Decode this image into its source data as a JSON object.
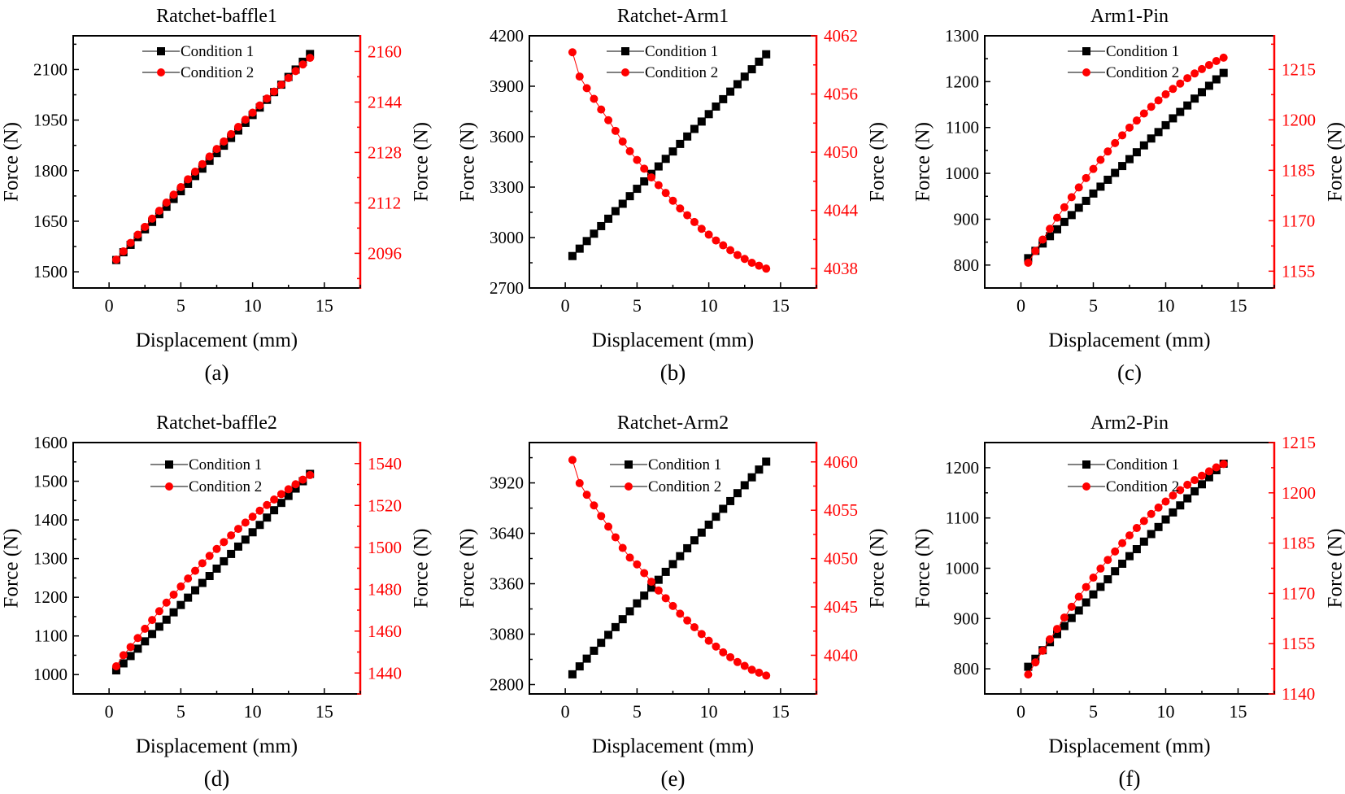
{
  "colors": {
    "series1": "#000000",
    "series2": "#ff0000",
    "axis": "#000000",
    "right_axis": "#ff0000"
  },
  "chart_data": [
    {
      "type": "line",
      "title": "Ratchet-baffle1",
      "panel_label": "(a)",
      "xlabel": "Displacement (mm)",
      "ylabel_left": "Force (N)",
      "ylabel_right": "Force (N)",
      "xlim": [
        -2.5,
        17.5
      ],
      "xticks": [
        0,
        5,
        10,
        15
      ],
      "y_left": {
        "lim": [
          1452,
          2200
        ],
        "ticks": [
          1500,
          1650,
          1800,
          1950,
          2100
        ]
      },
      "y_right": {
        "lim": [
          2085,
          2165
        ],
        "ticks": [
          2096,
          2112,
          2128,
          2144,
          2160
        ]
      },
      "legend": "top-center",
      "grid": false,
      "x": [
        0.5,
        1,
        1.5,
        2,
        2.5,
        3,
        3.5,
        4,
        4.5,
        5,
        5.5,
        6,
        6.5,
        7,
        7.5,
        8,
        8.5,
        9,
        9.5,
        10,
        10.5,
        11,
        11.5,
        12,
        12.5,
        13,
        13.5,
        14
      ],
      "series": [
        {
          "name": "Condition 1",
          "axis": "left",
          "marker": "square",
          "color": "#000000",
          "values": [
            1535,
            1558,
            1580,
            1603,
            1626,
            1648,
            1671,
            1693,
            1716,
            1739,
            1761,
            1784,
            1806,
            1829,
            1852,
            1874,
            1897,
            1919,
            1942,
            1965,
            1987,
            2010,
            2033,
            2055,
            2078,
            2100,
            2123,
            2146
          ]
        },
        {
          "name": "Condition 2",
          "axis": "right",
          "marker": "circle",
          "color": "#ff0000",
          "values": [
            2094,
            2096.6,
            2099.3,
            2101.9,
            2104.4,
            2107,
            2109.5,
            2112.1,
            2114.6,
            2117,
            2119.5,
            2121.9,
            2124.3,
            2126.7,
            2129.1,
            2131.5,
            2133.8,
            2136.1,
            2138.4,
            2140.6,
            2142.9,
            2145.1,
            2147.3,
            2149.5,
            2151.6,
            2153.8,
            2155.9,
            2158
          ]
        }
      ]
    },
    {
      "type": "line",
      "title": "Ratchet-Arm1",
      "panel_label": "(b)",
      "xlabel": "Displacement (mm)",
      "ylabel_left": "Force (N)",
      "ylabel_right": "Force (N)",
      "xlim": [
        -2.5,
        17.5
      ],
      "xticks": [
        0,
        5,
        10,
        15
      ],
      "y_left": {
        "lim": [
          2700,
          4200
        ],
        "ticks": [
          2700,
          3000,
          3300,
          3600,
          3900,
          4200
        ]
      },
      "y_right": {
        "lim": [
          4036,
          4062
        ],
        "ticks": [
          4038,
          4044,
          4050,
          4056,
          4062
        ]
      },
      "legend": "top-center",
      "grid": false,
      "x": [
        0.5,
        1,
        1.5,
        2,
        2.5,
        3,
        3.5,
        4,
        4.5,
        5,
        5.5,
        6,
        6.5,
        7,
        7.5,
        8,
        8.5,
        9,
        9.5,
        10,
        10.5,
        11,
        11.5,
        12,
        12.5,
        13,
        13.5,
        14
      ],
      "series": [
        {
          "name": "Condition 1",
          "axis": "left",
          "marker": "square",
          "color": "#000000",
          "values": [
            2890,
            2934,
            2979,
            3023,
            3068,
            3112,
            3157,
            3201,
            3246,
            3290,
            3334,
            3379,
            3423,
            3468,
            3512,
            3557,
            3601,
            3646,
            3690,
            3734,
            3779,
            3823,
            3868,
            3912,
            3957,
            4001,
            4046,
            4090
          ]
        },
        {
          "name": "Condition 2",
          "axis": "right",
          "marker": "circle",
          "color": "#ff0000",
          "values": [
            4060.3,
            4057.8,
            4056.6,
            4055.5,
            4054.4,
            4053.3,
            4052.2,
            4051.1,
            4050.1,
            4049.2,
            4048.3,
            4047.4,
            4046.6,
            4045.8,
            4045,
            4044.2,
            4043.5,
            4042.8,
            4042.1,
            4041.5,
            4040.9,
            4040.4,
            4039.9,
            4039.4,
            4039,
            4038.6,
            4038.3,
            4038
          ]
        }
      ]
    },
    {
      "type": "line",
      "title": "Arm1-Pin",
      "panel_label": "(c)",
      "xlabel": "Displacement (mm)",
      "ylabel_left": "Force (N)",
      "ylabel_right": "Force (N)",
      "xlim": [
        -2.5,
        17.5
      ],
      "xticks": [
        0,
        5,
        10,
        15
      ],
      "y_left": {
        "lim": [
          750,
          1300
        ],
        "ticks": [
          800,
          900,
          1000,
          1100,
          1200,
          1300
        ]
      },
      "y_right": {
        "lim": [
          1150,
          1225
        ],
        "ticks": [
          1155,
          1170,
          1185,
          1200,
          1215
        ]
      },
      "legend": "top-center",
      "grid": false,
      "x": [
        0.5,
        1,
        1.5,
        2,
        2.5,
        3,
        3.5,
        4,
        4.5,
        5,
        5.5,
        6,
        6.5,
        7,
        7.5,
        8,
        8.5,
        9,
        9.5,
        10,
        10.5,
        11,
        11.5,
        12,
        12.5,
        13,
        13.5,
        14
      ],
      "series": [
        {
          "name": "Condition 1",
          "axis": "left",
          "marker": "square",
          "color": "#000000",
          "values": [
            815,
            831,
            847,
            863,
            878,
            894,
            909,
            925,
            940,
            956,
            971,
            986,
            1001,
            1016,
            1031,
            1046,
            1061,
            1076,
            1090,
            1105,
            1120,
            1134,
            1148,
            1163,
            1177,
            1191,
            1205,
            1219
          ]
        },
        {
          "name": "Condition 2",
          "axis": "right",
          "marker": "circle",
          "color": "#ff0000",
          "values": [
            1157.5,
            1161,
            1164.4,
            1167.6,
            1170.9,
            1174,
            1177,
            1179.9,
            1182.7,
            1185.4,
            1188.1,
            1190.6,
            1193.1,
            1195.4,
            1197.7,
            1199.8,
            1201.9,
            1203.9,
            1205.8,
            1207.6,
            1209.2,
            1210.8,
            1212.4,
            1213.8,
            1215.1,
            1216.3,
            1217.5,
            1218.5
          ]
        }
      ]
    },
    {
      "type": "line",
      "title": "Ratchet-baffle2",
      "panel_label": "(d)",
      "xlabel": "Displacement (mm)",
      "ylabel_left": "Force (N)",
      "ylabel_right": "Force (N)",
      "xlim": [
        -2.5,
        17.5
      ],
      "xticks": [
        0,
        5,
        10,
        15
      ],
      "y_left": {
        "lim": [
          950,
          1600
        ],
        "ticks": [
          1000,
          1100,
          1200,
          1300,
          1400,
          1500,
          1600
        ]
      },
      "y_right": {
        "lim": [
          1430,
          1550
        ],
        "ticks": [
          1440,
          1460,
          1480,
          1500,
          1520,
          1540
        ]
      },
      "legend": "top-center",
      "grid": false,
      "x": [
        0.5,
        1,
        1.5,
        2,
        2.5,
        3,
        3.5,
        4,
        4.5,
        5,
        5.5,
        6,
        6.5,
        7,
        7.5,
        8,
        8.5,
        9,
        9.5,
        10,
        10.5,
        11,
        11.5,
        12,
        12.5,
        13,
        13.5,
        14
      ],
      "series": [
        {
          "name": "Condition 1",
          "axis": "left",
          "marker": "square",
          "color": "#000000",
          "values": [
            1011,
            1029,
            1048,
            1067,
            1086,
            1105,
            1124,
            1142,
            1161,
            1180,
            1199,
            1218,
            1237,
            1255,
            1274,
            1293,
            1312,
            1331,
            1349,
            1368,
            1387,
            1406,
            1425,
            1444,
            1462,
            1481,
            1500,
            1519
          ]
        },
        {
          "name": "Condition 2",
          "axis": "right",
          "marker": "circle",
          "color": "#ff0000",
          "values": [
            1443.2,
            1448.5,
            1452.4,
            1456.7,
            1461.1,
            1465.3,
            1469.5,
            1473.6,
            1477.4,
            1481.3,
            1485.1,
            1488.8,
            1492.4,
            1495.9,
            1499.2,
            1502.5,
            1505.7,
            1508.8,
            1511.8,
            1514.6,
            1517.5,
            1520.2,
            1522.8,
            1525.4,
            1527.7,
            1530.1,
            1532.3,
            1534.5
          ]
        }
      ]
    },
    {
      "type": "line",
      "title": "Ratchet-Arm2",
      "panel_label": "(e)",
      "xlabel": "Displacement (mm)",
      "ylabel_left": "Force (N)",
      "ylabel_right": "Force (N)",
      "xlim": [
        -2.5,
        17.5
      ],
      "xticks": [
        0,
        5,
        10,
        15
      ],
      "y_left": {
        "lim": [
          2748,
          4144
        ],
        "ticks": [
          2800,
          3080,
          3360,
          3640,
          3920
        ]
      },
      "y_right": {
        "lim": [
          4036,
          4062
        ],
        "ticks": [
          4040,
          4045,
          4050,
          4055,
          4060
        ]
      },
      "legend": "top-center",
      "grid": false,
      "x": [
        0.5,
        1,
        1.5,
        2,
        2.5,
        3,
        3.5,
        4,
        4.5,
        5,
        5.5,
        6,
        6.5,
        7,
        7.5,
        8,
        8.5,
        9,
        9.5,
        10,
        10.5,
        11,
        11.5,
        12,
        12.5,
        13,
        13.5,
        14
      ],
      "series": [
        {
          "name": "Condition 1",
          "axis": "left",
          "marker": "square",
          "color": "#000000",
          "values": [
            2857,
            2901,
            2944,
            2988,
            3032,
            3076,
            3119,
            3163,
            3207,
            3251,
            3294,
            3338,
            3382,
            3426,
            3469,
            3513,
            3557,
            3601,
            3644,
            3688,
            3732,
            3776,
            3819,
            3863,
            3907,
            3951,
            3994,
            4038
          ]
        },
        {
          "name": "Condition 2",
          "axis": "right",
          "marker": "circle",
          "color": "#ff0000",
          "values": [
            4060.2,
            4057.8,
            4056.6,
            4055.5,
            4054.4,
            4053.3,
            4052.2,
            4051.1,
            4050.1,
            4049.4,
            4048.5,
            4047.6,
            4046.7,
            4045.9,
            4045.1,
            4044.3,
            4043.6,
            4042.9,
            4042.2,
            4041.5,
            4040.9,
            4040.3,
            4039.8,
            4039.3,
            4038.9,
            4038.5,
            4038.2,
            4037.9
          ]
        }
      ]
    },
    {
      "type": "line",
      "title": "Arm2-Pin",
      "panel_label": "(f)",
      "xlabel": "Displacement (mm)",
      "ylabel_left": "Force (N)",
      "ylabel_right": "Force (N)",
      "xlim": [
        -2.5,
        17.5
      ],
      "xticks": [
        0,
        5,
        10,
        15
      ],
      "y_left": {
        "lim": [
          750,
          1250
        ],
        "ticks": [
          800,
          900,
          1000,
          1100,
          1200
        ]
      },
      "y_right": {
        "lim": [
          1140,
          1215
        ],
        "ticks": [
          1140,
          1155,
          1170,
          1185,
          1200,
          1215
        ]
      },
      "legend": "top-center",
      "grid": false,
      "x": [
        0.5,
        1,
        1.5,
        2,
        2.5,
        3,
        3.5,
        4,
        4.5,
        5,
        5.5,
        6,
        6.5,
        7,
        7.5,
        8,
        8.5,
        9,
        9.5,
        10,
        10.5,
        11,
        11.5,
        12,
        12.5,
        13,
        13.5,
        14
      ],
      "series": [
        {
          "name": "Condition 1",
          "axis": "left",
          "marker": "square",
          "color": "#000000",
          "values": [
            804,
            820,
            837,
            853,
            869,
            885,
            901,
            916,
            932,
            948,
            963,
            978,
            994,
            1009,
            1024,
            1038,
            1053,
            1068,
            1082,
            1097,
            1111,
            1125,
            1139,
            1153,
            1167,
            1181,
            1195,
            1208
          ]
        },
        {
          "name": "Condition 2",
          "axis": "right",
          "marker": "circle",
          "color": "#ff0000",
          "values": [
            1145.8,
            1149.4,
            1152.9,
            1156.3,
            1159.4,
            1162.8,
            1166,
            1169,
            1171.9,
            1174.7,
            1177.4,
            1180,
            1182.5,
            1185,
            1187.3,
            1189.5,
            1191.6,
            1193.7,
            1195.6,
            1197.4,
            1199.2,
            1200.8,
            1202.4,
            1203.8,
            1205.1,
            1206.4,
            1207.6,
            1208.6
          ]
        }
      ]
    }
  ]
}
